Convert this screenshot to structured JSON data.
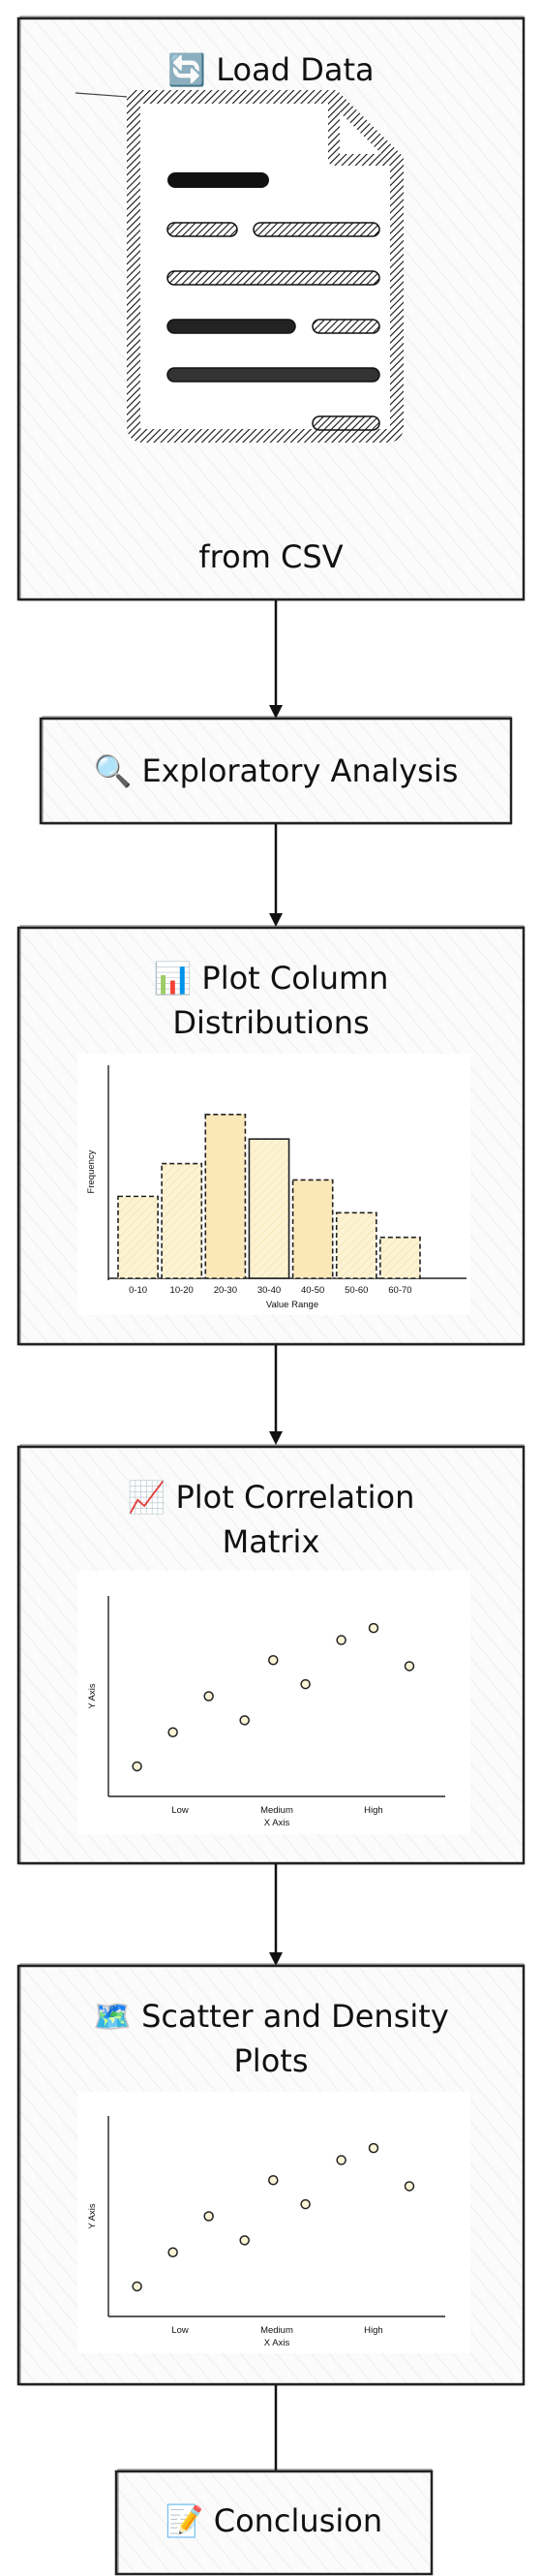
{
  "flow": {
    "nodes": [
      {
        "id": "load",
        "emoji": "🔄",
        "title": "Load Data",
        "subtitle": "from CSV"
      },
      {
        "id": "eda",
        "emoji": "🔍",
        "title": "Exploratory Analysis"
      },
      {
        "id": "dist",
        "emoji": "📊",
        "title_line1": "Plot Column",
        "title_line2": "Distributions"
      },
      {
        "id": "corr",
        "emoji": "📈",
        "title_line1": "Plot Correlation",
        "title_line2": "Matrix"
      },
      {
        "id": "scatter",
        "emoji": "🗺️",
        "title_line1": "Scatter and Density",
        "title_line2": "Plots"
      },
      {
        "id": "conclusion",
        "emoji": "📝",
        "title": "Conclusion"
      }
    ]
  },
  "colors": {
    "stroke": "#222222",
    "bar_fill": "#fdf3d3",
    "bar_fill_hi": "#fae8b8",
    "point_fill": "#fbf4d6",
    "panel_bg": "#f6f6f6"
  },
  "chart_data": [
    {
      "type": "bar",
      "categories": [
        "0-10",
        "10-20",
        "20-30",
        "30-40",
        "40-50",
        "50-60",
        "60-70"
      ],
      "values": [
        5,
        7,
        10,
        8.5,
        6,
        4,
        2.5
      ],
      "xlabel": "Value Range",
      "ylabel": "Frequency",
      "ylim": [
        0,
        13
      ]
    },
    {
      "type": "scatter",
      "x_ticks": [
        "Low",
        "Medium",
        "High"
      ],
      "x": [
        0.7,
        1.2,
        1.7,
        2.2,
        2.6,
        3.05,
        3.55,
        4.0,
        4.5
      ],
      "y": [
        1.5,
        3.2,
        5.0,
        3.8,
        6.8,
        5.6,
        7.8,
        8.4,
        6.5
      ],
      "xlabel": "X Axis",
      "ylabel": "Y Axis",
      "xlim": [
        0.3,
        5.0
      ],
      "ylim": [
        0,
        10
      ]
    },
    {
      "type": "scatter",
      "x_ticks": [
        "Low",
        "Medium",
        "High"
      ],
      "x": [
        0.7,
        1.2,
        1.7,
        2.2,
        2.6,
        3.05,
        3.55,
        4.0,
        4.5
      ],
      "y": [
        1.5,
        3.2,
        5.0,
        3.8,
        6.8,
        5.6,
        7.8,
        8.4,
        6.5
      ],
      "xlabel": "X Axis",
      "ylabel": "Y Axis",
      "xlim": [
        0.3,
        5.0
      ],
      "ylim": [
        0,
        10
      ]
    }
  ]
}
